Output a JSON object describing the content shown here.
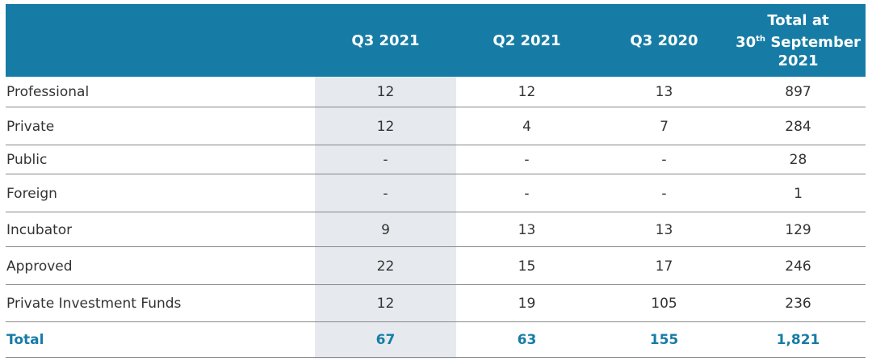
{
  "header": {
    "columns": [
      "Q3 2021",
      "Q2 2021",
      "Q3 2020"
    ],
    "total_column": {
      "line1": "Total at",
      "day": "30",
      "superscript": "th",
      "month": "September",
      "year": "2021"
    }
  },
  "table": {
    "rows": [
      [
        "Professional",
        12,
        12,
        13,
        897
      ],
      [
        "Private",
        12,
        4,
        7,
        284
      ],
      [
        "Public",
        "-",
        "-",
        "-",
        28
      ],
      [
        "Foreign",
        "-",
        "-",
        "-",
        1
      ],
      [
        "Incubator",
        9,
        13,
        13,
        129
      ],
      [
        "Approved",
        22,
        15,
        17,
        246
      ],
      [
        "Private Investment Funds",
        12,
        19,
        105,
        236
      ]
    ],
    "total": [
      "Total",
      67,
      63,
      155,
      "1,821"
    ]
  }
}
